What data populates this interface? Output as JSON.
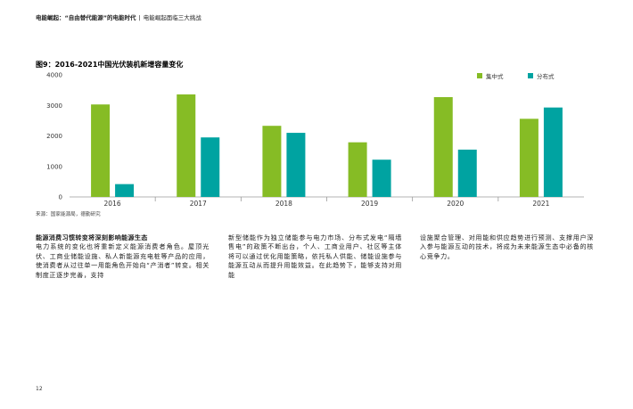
{
  "header": {
    "report_title": "电能崛起：“自由替代能源”的电能时代",
    "separator": "|",
    "section": "电能崛起面临三大挑战"
  },
  "figure": {
    "title": "图9：2016-2021中国光伏装机新增容量变化",
    "source": "来源：国家能源局，德勤研究"
  },
  "chart_data": {
    "type": "bar",
    "categories": [
      "2016",
      "2017",
      "2018",
      "2019",
      "2020",
      "2021"
    ],
    "series": [
      {
        "name": "集中式",
        "color": "#86bc25",
        "values": [
          3030,
          3360,
          2330,
          1790,
          3270,
          2560
        ]
      },
      {
        "name": "分布式",
        "color": "#00a3a1",
        "values": [
          420,
          1950,
          2100,
          1220,
          1550,
          2930
        ]
      }
    ],
    "ylim": [
      0,
      4000
    ],
    "yticks": [
      "0",
      "1000",
      "2000",
      "3000",
      "4000"
    ],
    "grid": false,
    "legend": "top-right"
  },
  "body": {
    "col1_heading": "能源消费习惯转变将深刻影响能源生态",
    "col1_text": "电力系统的变化也将重新定义能源消费者角色。屋顶光伏、工商业储能设施、私人新能源充电桩等产品的应用，使消费者从过往单一用能角色开始向“产消者”转变。相关制度正逐步完善，支持",
    "col2_text": "新型储能作为独立储能参与电力市场、分布式发电“隔墙售电”的政策不断出台，个人、工商业用户、社区等主体将可以通过优化用能策略，依托私人供能、储能设施参与能源互动从而提升用能效益。在此趋势下，能够支持对用能",
    "col3_text": "设施聚合管理、对用能和供应趋势进行预测、支撑用户深入参与能源互动的技术，将成为未来能源生态中必备的核心竞争力。"
  },
  "footer": {
    "page_number": "12"
  }
}
